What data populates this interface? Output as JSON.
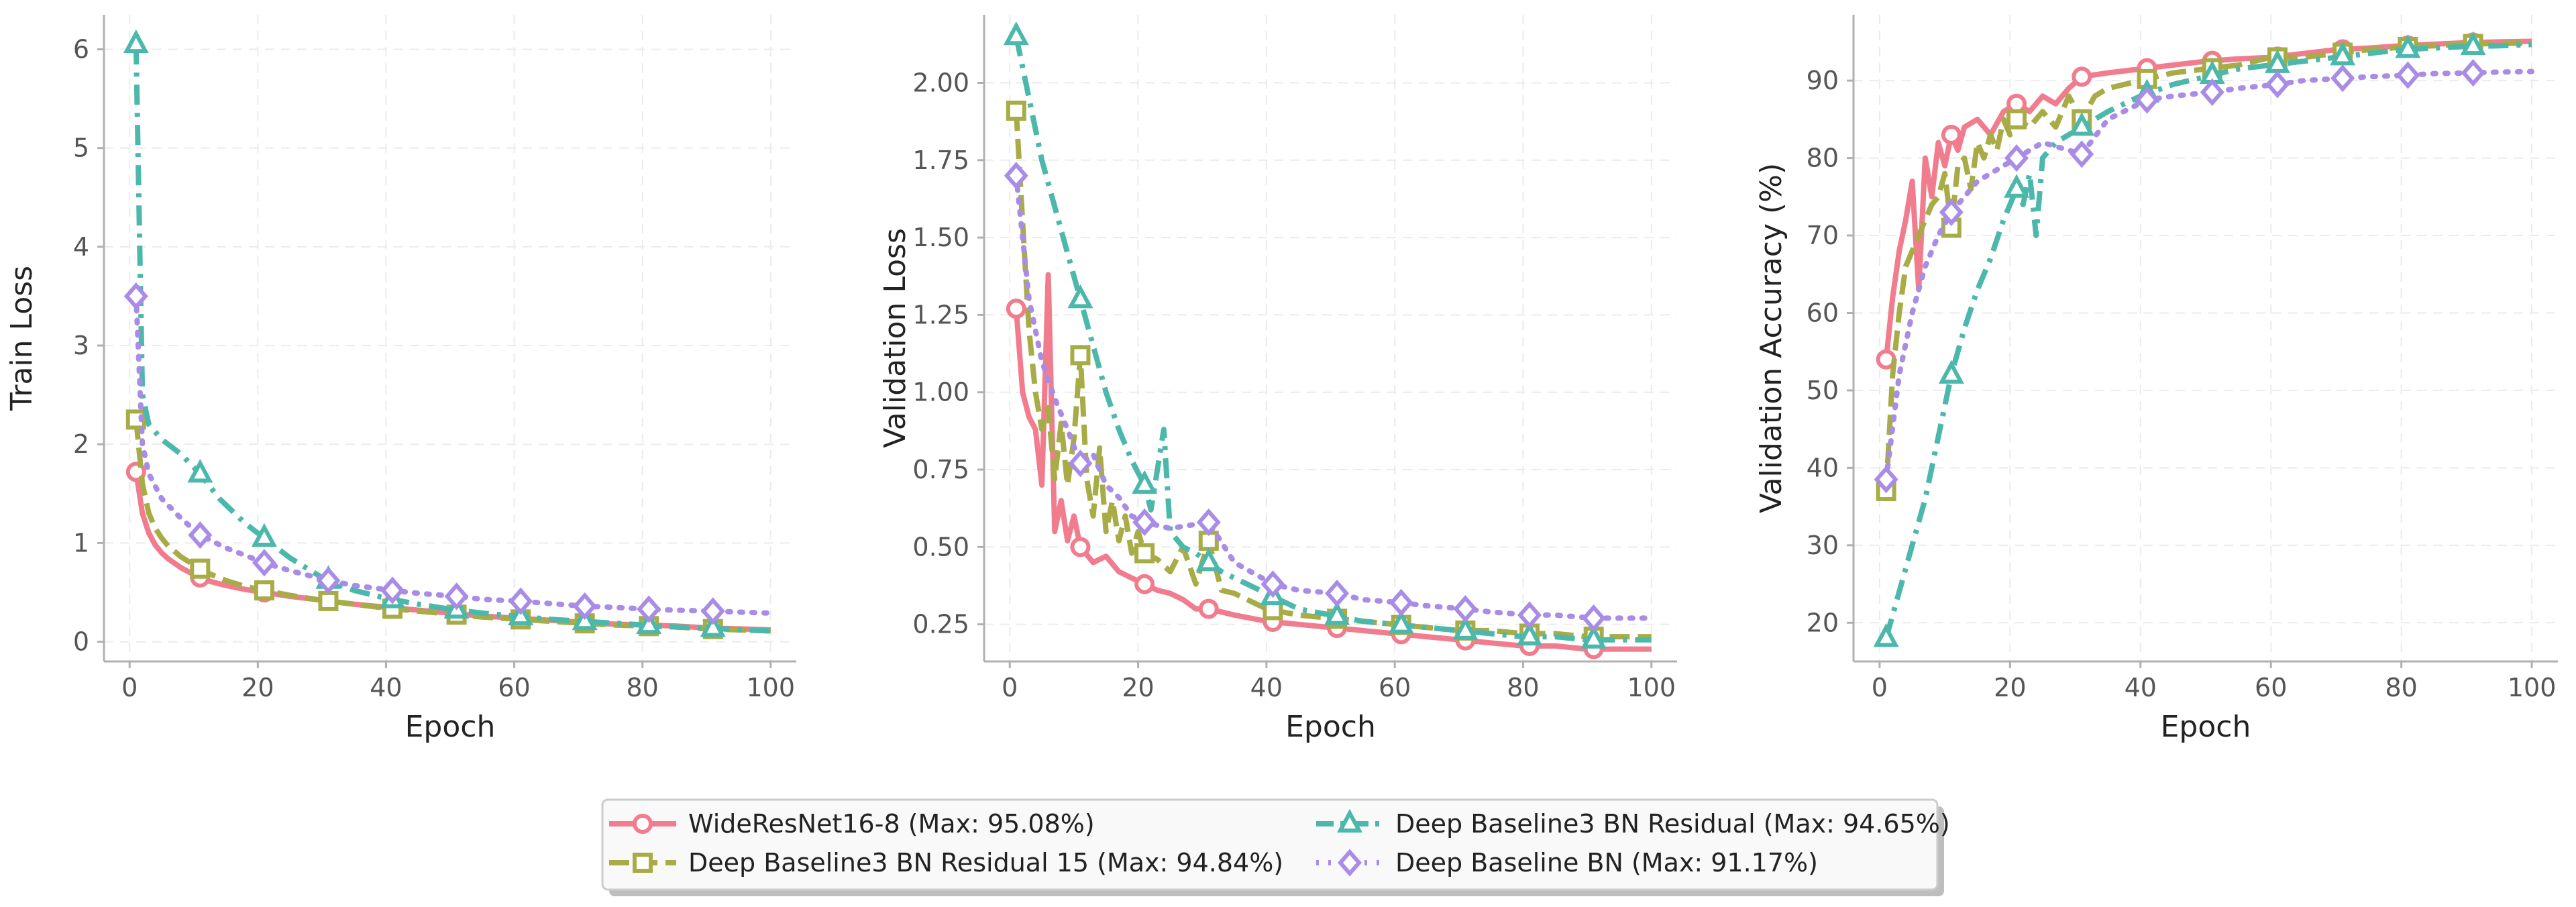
{
  "chart_data": [
    {
      "type": "line",
      "xlabel": "Epoch",
      "ylabel": "Train Loss",
      "xlim": [
        -4,
        104
      ],
      "ylim": [
        -0.2,
        6.35
      ],
      "xticks": [
        0,
        20,
        40,
        60,
        80,
        100
      ],
      "yticks": [
        0,
        1,
        2,
        3,
        4,
        5,
        6
      ],
      "grid": true,
      "series": [
        {
          "name": "WideResNet16-8 (Max: 95.08%)",
          "color": "#f07c8e",
          "dash": "solid",
          "marker": "circle",
          "x": [
            1,
            2,
            3,
            4,
            5,
            6,
            8,
            10,
            12,
            15,
            18,
            21,
            25,
            30,
            35,
            40,
            45,
            50,
            55,
            60,
            65,
            70,
            75,
            80,
            85,
            90,
            95,
            100
          ],
          "y": [
            1.72,
            1.3,
            1.1,
            0.98,
            0.9,
            0.84,
            0.75,
            0.68,
            0.62,
            0.57,
            0.53,
            0.5,
            0.46,
            0.42,
            0.38,
            0.35,
            0.32,
            0.29,
            0.26,
            0.24,
            0.22,
            0.2,
            0.18,
            0.17,
            0.16,
            0.14,
            0.13,
            0.12
          ],
          "markers_x": [
            1,
            11,
            21,
            31,
            41,
            51,
            61,
            71,
            81,
            91
          ]
        },
        {
          "name": "Deep Baseline3 BN Residual 15 (Max: 94.84%)",
          "color": "#a8ac47",
          "dash": "dashed",
          "marker": "square",
          "x": [
            1,
            2,
            3,
            4,
            5,
            6,
            8,
            10,
            12,
            15,
            18,
            21,
            25,
            30,
            35,
            40,
            45,
            50,
            55,
            60,
            65,
            70,
            75,
            80,
            85,
            90,
            95,
            100
          ],
          "y": [
            2.25,
            1.6,
            1.3,
            1.15,
            1.05,
            0.97,
            0.86,
            0.78,
            0.7,
            0.62,
            0.56,
            0.52,
            0.47,
            0.42,
            0.38,
            0.34,
            0.31,
            0.28,
            0.25,
            0.23,
            0.21,
            0.19,
            0.17,
            0.16,
            0.15,
            0.13,
            0.12,
            0.11
          ],
          "markers_x": [
            1,
            11,
            21,
            31,
            41,
            51,
            61,
            71,
            81,
            91
          ]
        },
        {
          "name": "Deep Baseline3 BN Residual (Max: 94.65%)",
          "color": "#4cb8ac",
          "dash": "dashdot",
          "marker": "triangle",
          "x": [
            1,
            2,
            3,
            5,
            8,
            11,
            14,
            18,
            21,
            25,
            30,
            35,
            40,
            45,
            50,
            55,
            60,
            65,
            70,
            75,
            80,
            85,
            90,
            95,
            100
          ],
          "y": [
            6.05,
            2.5,
            2.2,
            2.05,
            1.9,
            1.7,
            1.45,
            1.2,
            1.05,
            0.85,
            0.65,
            0.52,
            0.44,
            0.38,
            0.33,
            0.29,
            0.26,
            0.23,
            0.21,
            0.19,
            0.17,
            0.15,
            0.14,
            0.12,
            0.11
          ],
          "markers_x": [
            1,
            11,
            21,
            31,
            41,
            51,
            61,
            71,
            81,
            91
          ]
        },
        {
          "name": "Deep Baseline BN (Max: 91.17%)",
          "color": "#a98ce6",
          "dash": "dotted",
          "marker": "diamond",
          "x": [
            1,
            2,
            3,
            5,
            8,
            11,
            15,
            21,
            25,
            31,
            35,
            41,
            45,
            51,
            55,
            61,
            65,
            71,
            75,
            81,
            85,
            91,
            95,
            100
          ],
          "y": [
            3.5,
            2.0,
            1.7,
            1.45,
            1.25,
            1.08,
            0.95,
            0.8,
            0.72,
            0.62,
            0.57,
            0.52,
            0.49,
            0.46,
            0.43,
            0.41,
            0.39,
            0.36,
            0.35,
            0.33,
            0.32,
            0.31,
            0.3,
            0.29
          ],
          "markers_x": [
            1,
            11,
            21,
            31,
            41,
            51,
            61,
            71,
            81,
            91
          ]
        }
      ]
    },
    {
      "type": "line",
      "xlabel": "Epoch",
      "ylabel": "Validation Loss",
      "xlim": [
        -4,
        104
      ],
      "ylim": [
        0.13,
        2.22
      ],
      "xticks": [
        0,
        20,
        40,
        60,
        80,
        100
      ],
      "yticks": [
        0.25,
        0.5,
        0.75,
        1.0,
        1.25,
        1.5,
        1.75,
        2.0
      ],
      "ytick_labels": [
        "0.25",
        "0.50",
        "0.75",
        "1.00",
        "1.25",
        "1.50",
        "1.75",
        "2.00"
      ],
      "grid": true,
      "series": [
        {
          "name": "WideResNet16-8 (Max: 95.08%)",
          "color": "#f07c8e",
          "dash": "solid",
          "marker": "circle",
          "x": [
            1,
            2,
            3,
            4,
            5,
            6,
            7,
            8,
            9,
            10,
            11,
            13,
            15,
            17,
            19,
            21,
            23,
            25,
            27,
            29,
            31,
            33,
            35,
            40,
            45,
            50,
            55,
            60,
            65,
            70,
            75,
            80,
            85,
            90,
            95,
            100
          ],
          "y": [
            1.27,
            1.0,
            0.92,
            0.88,
            0.7,
            1.38,
            0.55,
            0.65,
            0.52,
            0.6,
            0.5,
            0.45,
            0.47,
            0.42,
            0.4,
            0.38,
            0.36,
            0.35,
            0.33,
            0.3,
            0.3,
            0.29,
            0.28,
            0.26,
            0.25,
            0.24,
            0.23,
            0.22,
            0.21,
            0.2,
            0.19,
            0.18,
            0.18,
            0.17,
            0.17,
            0.17
          ],
          "markers_x": [
            1,
            11,
            21,
            31,
            41,
            51,
            61,
            71,
            81,
            91
          ]
        },
        {
          "name": "Deep Baseline3 BN Residual 15 (Max: 94.84%)",
          "color": "#a8ac47",
          "dash": "dashed",
          "marker": "square",
          "x": [
            1,
            2,
            3,
            4,
            5,
            6,
            7,
            8,
            9,
            10,
            11,
            12,
            13,
            14,
            15,
            16,
            17,
            18,
            19,
            20,
            21,
            23,
            25,
            27,
            29,
            31,
            33,
            35,
            40,
            45,
            50,
            55,
            60,
            65,
            70,
            75,
            80,
            85,
            90,
            95,
            100
          ],
          "y": [
            1.91,
            1.55,
            1.2,
            1.0,
            0.88,
            0.95,
            0.72,
            0.9,
            0.7,
            0.85,
            1.12,
            0.72,
            0.6,
            0.82,
            0.55,
            0.65,
            0.52,
            0.6,
            0.48,
            0.55,
            0.48,
            0.46,
            0.42,
            0.5,
            0.38,
            0.52,
            0.36,
            0.35,
            0.3,
            0.28,
            0.27,
            0.26,
            0.25,
            0.24,
            0.23,
            0.23,
            0.22,
            0.22,
            0.21,
            0.21,
            0.21
          ],
          "markers_x": [
            1,
            11,
            21,
            31,
            41,
            51,
            61,
            71,
            81,
            91
          ]
        },
        {
          "name": "Deep Baseline3 BN Residual (Max: 94.65%)",
          "color": "#4cb8ac",
          "dash": "dashdot",
          "marker": "triangle",
          "x": [
            1,
            3,
            5,
            7,
            9,
            11,
            13,
            15,
            17,
            19,
            21,
            22,
            23,
            24,
            25,
            27,
            29,
            31,
            33,
            35,
            40,
            45,
            50,
            55,
            60,
            65,
            70,
            75,
            80,
            85,
            90,
            95,
            100
          ],
          "y": [
            2.15,
            1.95,
            1.75,
            1.6,
            1.45,
            1.3,
            1.15,
            1.0,
            0.88,
            0.78,
            0.7,
            0.62,
            0.75,
            0.88,
            0.55,
            0.5,
            0.48,
            0.45,
            0.42,
            0.4,
            0.35,
            0.3,
            0.28,
            0.26,
            0.25,
            0.24,
            0.23,
            0.22,
            0.21,
            0.21,
            0.2,
            0.2,
            0.2
          ],
          "markers_x": [
            1,
            11,
            21,
            31,
            41,
            51,
            61,
            71,
            81,
            91
          ]
        },
        {
          "name": "Deep Baseline BN (Max: 91.17%)",
          "color": "#a98ce6",
          "dash": "dotted",
          "marker": "diamond",
          "x": [
            1,
            3,
            5,
            7,
            9,
            11,
            13,
            15,
            17,
            19,
            21,
            25,
            31,
            35,
            41,
            45,
            51,
            55,
            61,
            65,
            71,
            75,
            81,
            85,
            91,
            95,
            100
          ],
          "y": [
            1.7,
            1.3,
            1.1,
            0.98,
            0.88,
            0.77,
            0.8,
            0.7,
            0.66,
            0.6,
            0.58,
            0.56,
            0.58,
            0.45,
            0.38,
            0.36,
            0.35,
            0.33,
            0.32,
            0.31,
            0.3,
            0.29,
            0.28,
            0.28,
            0.27,
            0.27,
            0.27
          ],
          "markers_x": [
            1,
            11,
            21,
            31,
            41,
            51,
            61,
            71,
            81,
            91
          ]
        }
      ]
    },
    {
      "type": "line",
      "xlabel": "Epoch",
      "ylabel": "Validation Accuracy (%)",
      "xlim": [
        -4,
        104
      ],
      "ylim": [
        15,
        98.5
      ],
      "xticks": [
        0,
        20,
        40,
        60,
        80,
        100
      ],
      "yticks": [
        20,
        30,
        40,
        50,
        60,
        70,
        80,
        90
      ],
      "grid": true,
      "series": [
        {
          "name": "WideResNet16-8 (Max: 95.08%)",
          "color": "#f07c8e",
          "dash": "solid",
          "marker": "circle",
          "x": [
            1,
            2,
            3,
            4,
            5,
            6,
            7,
            8,
            9,
            10,
            11,
            12,
            13,
            15,
            17,
            19,
            21,
            23,
            25,
            27,
            29,
            31,
            35,
            40,
            45,
            50,
            55,
            60,
            65,
            70,
            75,
            80,
            85,
            90,
            95,
            100
          ],
          "y": [
            54,
            62,
            68,
            72,
            77,
            63,
            80,
            75,
            82,
            79,
            83,
            81,
            84,
            85,
            83,
            86,
            87,
            86,
            88,
            87,
            89,
            90.5,
            91,
            91.5,
            92,
            92.5,
            92.8,
            93,
            93.5,
            94,
            94.2,
            94.5,
            94.7,
            94.9,
            95,
            95.08
          ],
          "markers_x": [
            1,
            11,
            21,
            31,
            41,
            51,
            61,
            71,
            81,
            91
          ]
        },
        {
          "name": "Deep Baseline3 BN Residual 15 (Max: 94.84%)",
          "color": "#a8ac47",
          "dash": "dashed",
          "marker": "square",
          "x": [
            1,
            2,
            3,
            4,
            5,
            6,
            7,
            8,
            9,
            10,
            11,
            12,
            13,
            14,
            15,
            16,
            17,
            18,
            19,
            20,
            21,
            23,
            25,
            27,
            29,
            31,
            33,
            35,
            40,
            45,
            50,
            55,
            60,
            65,
            70,
            75,
            80,
            85,
            90,
            95,
            100
          ],
          "y": [
            37,
            52,
            60,
            66,
            68,
            70,
            72,
            74,
            75,
            78,
            71,
            79,
            80,
            76,
            82,
            80,
            83,
            81,
            85,
            83,
            85,
            84,
            86,
            84,
            88,
            85,
            88,
            89,
            90,
            91,
            91.5,
            92,
            93,
            93,
            93.5,
            94,
            94.3,
            94.5,
            94.7,
            94.8,
            94.84
          ],
          "markers_x": [
            1,
            11,
            21,
            31,
            41,
            51,
            61,
            71,
            81,
            91
          ]
        },
        {
          "name": "Deep Baseline3 BN Residual (Max: 94.65%)",
          "color": "#4cb8ac",
          "dash": "dashdot",
          "marker": "triangle",
          "x": [
            1,
            3,
            5,
            7,
            9,
            11,
            13,
            15,
            17,
            19,
            21,
            22,
            23,
            24,
            25,
            27,
            29,
            31,
            35,
            40,
            45,
            50,
            55,
            60,
            65,
            70,
            75,
            80,
            85,
            90,
            95,
            100
          ],
          "y": [
            18,
            24,
            30,
            36,
            44,
            52,
            58,
            63,
            67,
            72,
            76,
            74,
            78,
            70,
            80,
            82,
            83,
            84,
            86,
            88,
            89.5,
            90.5,
            91.5,
            92,
            92.5,
            93,
            93.5,
            94,
            94.2,
            94.4,
            94.5,
            94.65
          ],
          "markers_x": [
            1,
            11,
            21,
            31,
            41,
            51,
            61,
            71,
            81,
            91
          ]
        },
        {
          "name": "Deep Baseline BN (Max: 91.17%)",
          "color": "#a98ce6",
          "dash": "dotted",
          "marker": "diamond",
          "x": [
            1,
            3,
            5,
            7,
            9,
            11,
            13,
            15,
            17,
            19,
            21,
            25,
            31,
            35,
            41,
            45,
            51,
            55,
            61,
            65,
            71,
            75,
            81,
            85,
            91,
            95,
            100
          ],
          "y": [
            38.5,
            52,
            60,
            66,
            70,
            73,
            75,
            77,
            78,
            79,
            80,
            82,
            80.5,
            85,
            87.5,
            88,
            88.5,
            89,
            89.5,
            90,
            90.3,
            90.5,
            90.7,
            90.9,
            91,
            91.1,
            91.17
          ],
          "markers_x": [
            1,
            11,
            21,
            31,
            41,
            51,
            61,
            71,
            81,
            91
          ]
        }
      ]
    }
  ],
  "legend": {
    "placement": "bottom-center",
    "entries": [
      "WideResNet16-8 (Max: 95.08%)",
      "Deep Baseline3 BN Residual (Max: 94.65%)",
      "Deep Baseline3 BN Residual 15 (Max: 94.84%)",
      "Deep Baseline BN (Max: 91.17%)"
    ]
  }
}
